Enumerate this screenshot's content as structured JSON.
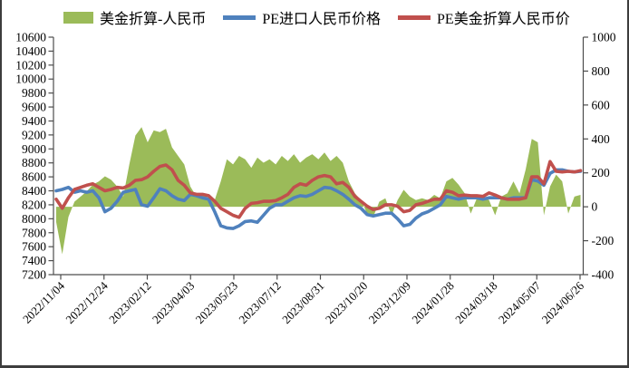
{
  "chart_data": {
    "type": "combo",
    "title": "",
    "x_start": "2022/11/04",
    "x_end": "2024/06/26",
    "sampling": "approximately weekly estimates read from plot",
    "x_tick_labels": [
      "2022/11/04",
      "2022/12/24",
      "2023/02/12",
      "2023/04/03",
      "2023/05/23",
      "2023/07/12",
      "2023/08/31",
      "2023/10/20",
      "2023/12/09",
      "2024/01/28",
      "2024/03/18",
      "2024/05/07",
      "2024/06/26"
    ],
    "left_axis": {
      "range": [
        7200,
        10600
      ],
      "tick_step": 200,
      "tick_labels": [
        "10600",
        "10400",
        "10200",
        "10000",
        "9800",
        "9600",
        "9400",
        "9200",
        "9000",
        "8800",
        "8600",
        "8400",
        "8200",
        "8000",
        "7800",
        "7600",
        "7400",
        "7200"
      ]
    },
    "right_axis": {
      "range": [
        -400,
        1000
      ],
      "tick_step": 200,
      "tick_labels": [
        "1000",
        "800",
        "600",
        "400",
        "200",
        "0",
        "-200",
        "-400"
      ]
    },
    "grid": false,
    "legend_position": "top",
    "series": [
      {
        "name": "美金折算-人民币",
        "type": "area",
        "axis": "right",
        "color": "#9BBB59",
        "values": [
          -90,
          -280,
          -60,
          30,
          60,
          90,
          130,
          150,
          180,
          160,
          120,
          60,
          250,
          420,
          470,
          380,
          450,
          440,
          460,
          350,
          300,
          250,
          120,
          60,
          80,
          50,
          40,
          150,
          280,
          250,
          300,
          280,
          230,
          290,
          260,
          280,
          250,
          300,
          270,
          310,
          260,
          290,
          310,
          280,
          320,
          270,
          300,
          260,
          150,
          80,
          40,
          -40,
          -60,
          30,
          50,
          -50,
          40,
          100,
          60,
          40,
          50,
          40,
          70,
          50,
          150,
          170,
          130,
          80,
          -40,
          50,
          60,
          40,
          -50,
          60,
          80,
          150,
          80,
          220,
          400,
          380,
          -50,
          120,
          190,
          150,
          -40,
          60,
          70
        ]
      },
      {
        "name": "PE进口人民币价格",
        "type": "line",
        "axis": "left",
        "color": "#4F81BD",
        "values": [
          8400,
          8420,
          8450,
          8380,
          8400,
          8380,
          8400,
          8300,
          8100,
          8150,
          8250,
          8380,
          8400,
          8420,
          8200,
          8180,
          8300,
          8430,
          8400,
          8330,
          8280,
          8260,
          8350,
          8330,
          8300,
          8280,
          8100,
          7900,
          7870,
          7860,
          7900,
          7960,
          7970,
          7950,
          8050,
          8150,
          8200,
          8200,
          8250,
          8300,
          8330,
          8320,
          8350,
          8400,
          8450,
          8440,
          8400,
          8350,
          8280,
          8200,
          8150,
          8060,
          8040,
          8060,
          8080,
          8080,
          8000,
          7900,
          7920,
          8010,
          8070,
          8100,
          8150,
          8200,
          8320,
          8300,
          8280,
          8300,
          8300,
          8300,
          8280,
          8300,
          8300,
          8300,
          8280,
          8300,
          8300,
          8300,
          8560,
          8540,
          8480,
          8650,
          8700,
          8700,
          8680,
          8670,
          8680
        ]
      },
      {
        "name": "PE美金折算人民币价",
        "type": "line",
        "axis": "left",
        "color": "#C0504D",
        "values": [
          8280,
          8150,
          8300,
          8420,
          8450,
          8480,
          8500,
          8450,
          8400,
          8420,
          8450,
          8440,
          8480,
          8550,
          8560,
          8600,
          8680,
          8750,
          8770,
          8700,
          8550,
          8480,
          8370,
          8350,
          8350,
          8330,
          8250,
          8150,
          8100,
          8050,
          8020,
          8150,
          8220,
          8230,
          8250,
          8250,
          8260,
          8300,
          8350,
          8450,
          8500,
          8480,
          8550,
          8600,
          8620,
          8600,
          8500,
          8520,
          8450,
          8320,
          8250,
          8180,
          8130,
          8150,
          8200,
          8200,
          8180,
          8100,
          8120,
          8200,
          8220,
          8250,
          8280,
          8280,
          8400,
          8380,
          8330,
          8340,
          8330,
          8330,
          8320,
          8370,
          8340,
          8300,
          8280,
          8280,
          8280,
          8300,
          8600,
          8600,
          8500,
          8820,
          8680,
          8670,
          8680,
          8670,
          8690
        ]
      }
    ]
  },
  "frame": {
    "border_color": "#3d3d3d",
    "axis_color": "#4d4d4d",
    "background": "#ffffff"
  }
}
